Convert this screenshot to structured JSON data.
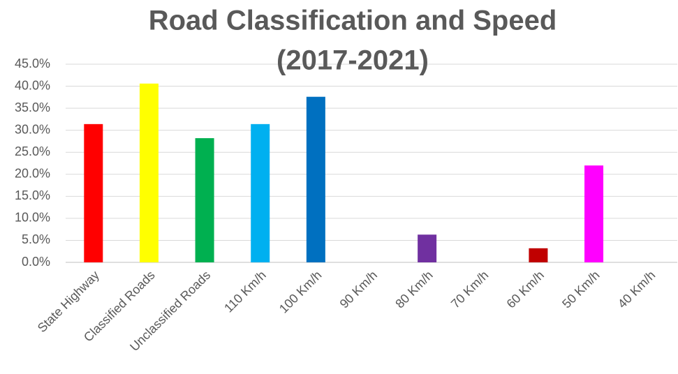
{
  "chart_data": {
    "type": "bar",
    "title": [
      "Road Classification and Speed",
      "(2017-2021)"
    ],
    "categories": [
      "State Highway",
      "Classified Roads",
      "Unclassified Roads",
      "110 Km/h",
      "100 Km/h",
      "90 Km/h",
      "80 Km/h",
      "70 Km/h",
      "60 Km/h",
      "50 Km/h",
      "40 Km/h"
    ],
    "values": [
      31.4,
      40.6,
      28.2,
      31.4,
      37.6,
      0,
      6.3,
      0,
      3.2,
      22.0,
      0
    ],
    "colors": [
      "#ff0000",
      "#ffff00",
      "#00b050",
      "#00b0f0",
      "#0070c0",
      null,
      "#7030a0",
      null,
      "#c00000",
      "#ff00ff",
      null
    ],
    "ylim": [
      0,
      45
    ],
    "yticks": [
      {
        "value": 0,
        "label": "0.0%"
      },
      {
        "value": 5,
        "label": "5.0%"
      },
      {
        "value": 10,
        "label": "10.0%"
      },
      {
        "value": 15,
        "label": "15.0%"
      },
      {
        "value": 20,
        "label": "20.0%"
      },
      {
        "value": 25,
        "label": "25.0%"
      },
      {
        "value": 30,
        "label": "30.0%"
      },
      {
        "value": 35,
        "label": "35.0%"
      },
      {
        "value": 40,
        "label": "40.0%"
      },
      {
        "value": 45,
        "label": "45.0%"
      }
    ],
    "grid": true
  }
}
